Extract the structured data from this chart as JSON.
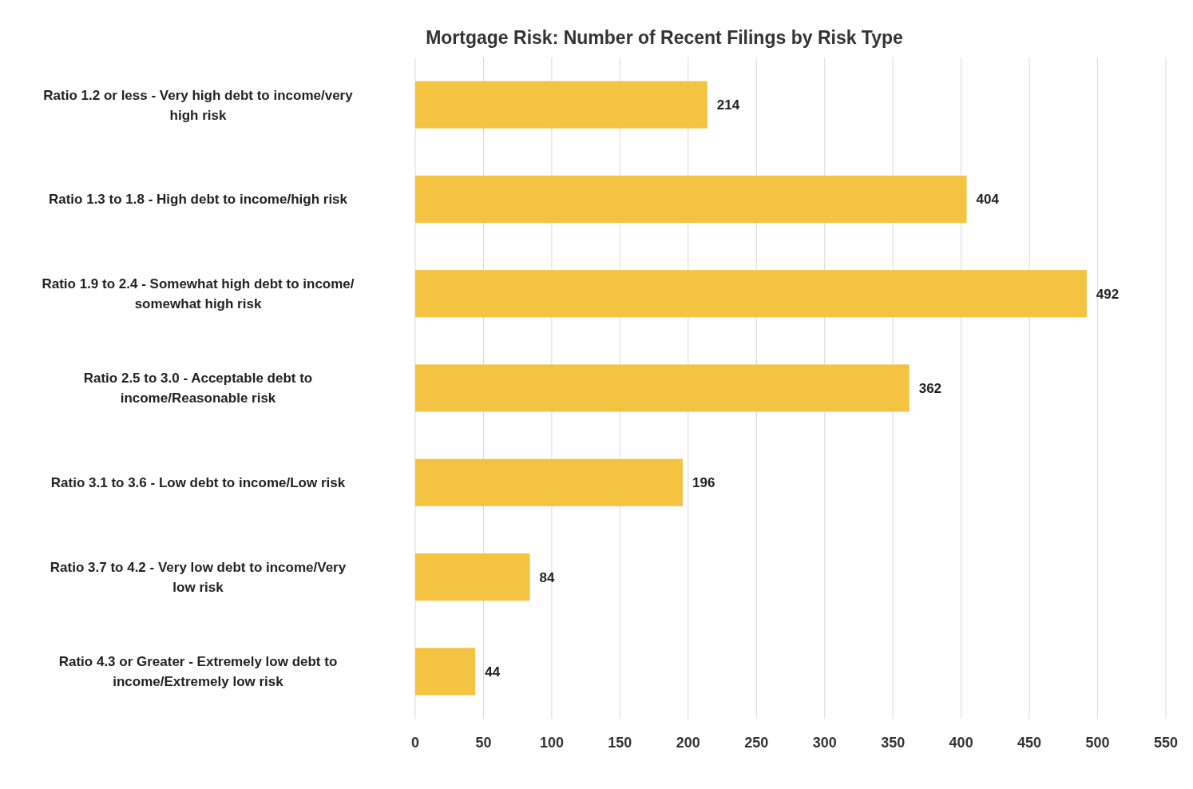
{
  "chart_data": {
    "type": "bar",
    "orientation": "horizontal",
    "title": "Mortgage Risk: Number of Recent Filings by Risk Type",
    "categories": [
      "Ratio 1.2 or less - Very high debt to income/very high risk",
      "Ratio 1.3 to 1.8 - High debt to income/high risk",
      "Ratio 1.9 to 2.4 - Somewhat high debt to income/ somewhat high risk",
      "Ratio 2.5 to 3.0 - Acceptable debt to income/Reasonable risk",
      "Ratio 3.1 to 3.6 - Low debt to income/Low risk",
      "Ratio 3.7 to 4.2 - Very low debt to income/Very low risk",
      "Ratio 4.3 or Greater - Extremely low debt to income/Extremely low risk"
    ],
    "values": [
      214,
      404,
      492,
      362,
      196,
      84,
      44
    ],
    "color": "#f5c342",
    "data_labels": true,
    "xlim": [
      0,
      550
    ],
    "xticks": [
      0,
      50,
      100,
      150,
      200,
      250,
      300,
      350,
      400,
      450,
      500,
      550
    ],
    "grid": "x"
  }
}
